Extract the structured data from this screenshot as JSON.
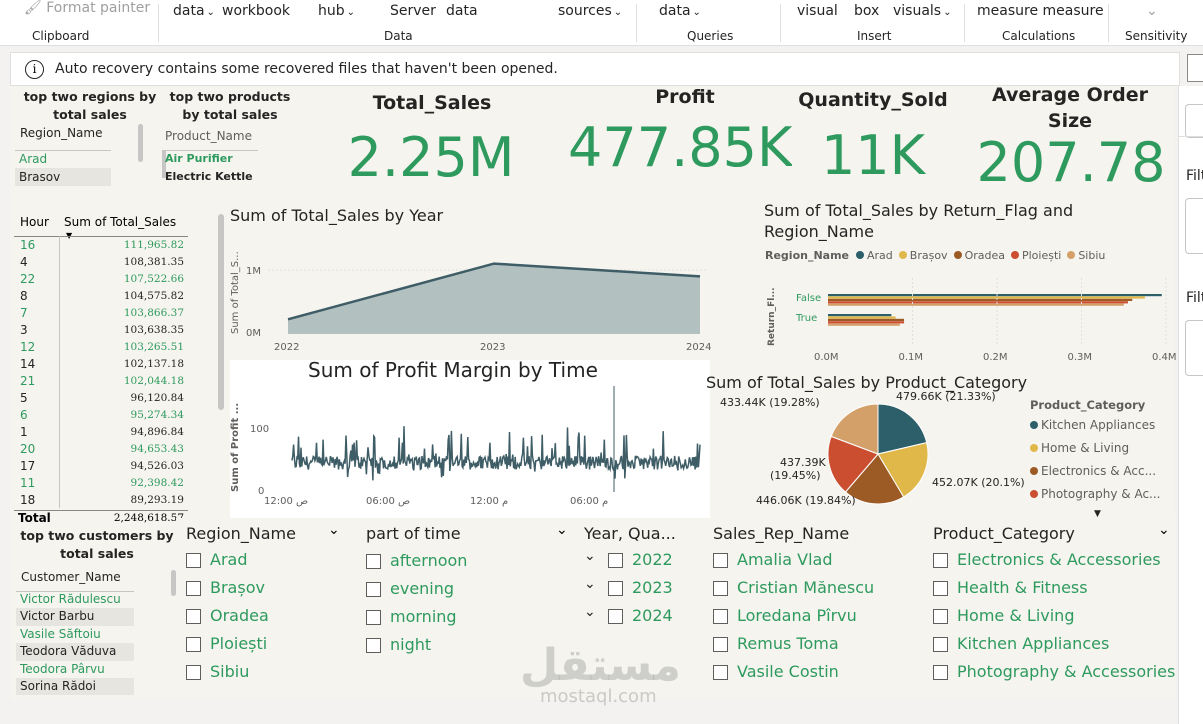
{
  "ribbon": {
    "format_painter": "Format painter",
    "items": [
      {
        "label": "data",
        "caret": true
      },
      {
        "label": "workbook",
        "caret": false
      },
      {
        "label": "hub",
        "caret": true
      },
      {
        "label": "Server",
        "caret": false
      },
      {
        "label": "data",
        "caret": false
      },
      {
        "label": "sources",
        "caret": true
      },
      {
        "label": "data",
        "caret": true
      },
      {
        "label": "visual",
        "caret": false
      },
      {
        "label": "box",
        "caret": false
      },
      {
        "label": "visuals",
        "caret": true
      },
      {
        "label": "measure measure",
        "caret": false
      }
    ],
    "groups": [
      "Clipboard",
      "Data",
      "Queries",
      "Insert",
      "Calculations",
      "Sensitivity"
    ],
    "caret_glyph": "⌄"
  },
  "infobar": {
    "text": "Auto recovery contains some recovered files that haven't been opened.",
    "icon": "info-icon"
  },
  "regions_slicer": {
    "title": "top two regions by total sales",
    "header": "Region_Name",
    "items": [
      "Arad",
      "Brasov"
    ]
  },
  "products_slicer": {
    "title": "top two products by total sales",
    "header": "Product_Name",
    "items": [
      "Air Purifier",
      "Electric Kettle"
    ]
  },
  "kpis": [
    {
      "title": "Total_Sales",
      "value": "2.25M"
    },
    {
      "title": "Profit",
      "value": "477.85K"
    },
    {
      "title": "Quantity_Sold",
      "value": "11K"
    },
    {
      "title": "Average Order Size",
      "value": "207.78"
    }
  ],
  "hour_table": {
    "col1": "Hour",
    "col2": "Sum of Total_Sales",
    "rows": [
      {
        "h": "16",
        "v": "111,965.82"
      },
      {
        "h": "4",
        "v": "108,381.35"
      },
      {
        "h": "22",
        "v": "107,522.66"
      },
      {
        "h": "8",
        "v": "104,575.82"
      },
      {
        "h": "7",
        "v": "103,866.37"
      },
      {
        "h": "3",
        "v": "103,638.35"
      },
      {
        "h": "12",
        "v": "103,265.51"
      },
      {
        "h": "14",
        "v": "102,137.18"
      },
      {
        "h": "21",
        "v": "102,044.18"
      },
      {
        "h": "5",
        "v": "96,120.84"
      },
      {
        "h": "6",
        "v": "95,274.34"
      },
      {
        "h": "1",
        "v": "94,896.84"
      },
      {
        "h": "20",
        "v": "94,653.43"
      },
      {
        "h": "17",
        "v": "94,526.03"
      },
      {
        "h": "11",
        "v": "92,398.42"
      },
      {
        "h": "18",
        "v": "89,293.19"
      }
    ],
    "total_label": "Total",
    "total_value": "2,248,618.57"
  },
  "customers_slicer": {
    "title": "top two customers by total sales",
    "header": "Customer_Name",
    "items": [
      "Victor Rădulescu",
      "Victor Barbu",
      "Vasile Săftoiu",
      "Teodora Văduva",
      "Teodora Pârvu",
      "Sorina Rădoi"
    ]
  },
  "charts": {
    "year": {
      "title": "Sum of Total_Sales by Year",
      "ylabel": "Sum of Total_S...",
      "yticks": [
        "0M",
        "1M"
      ]
    },
    "profit_time": {
      "title": "Sum of Profit Margin by Time",
      "ylabel": "Sum of Profit ...",
      "yticks": [
        "0",
        "100"
      ],
      "xticks": [
        "12:00 ص",
        "06:00 ص",
        "12:00 م",
        "06:00 م"
      ]
    },
    "return_flag": {
      "title": "Sum of Total_Sales by Return_Flag and Region_Name",
      "legend_title": "Region_Name",
      "ylabel": "Return_Fl..."
    },
    "category": {
      "title": "Sum of Total_Sales by Product_Category",
      "legend_title": "Product_Category"
    }
  },
  "chart_data": [
    {
      "type": "area",
      "x": [
        "2022",
        "2023",
        "2024"
      ],
      "values": [
        0.23,
        1.1,
        0.9
      ],
      "ylim": [
        0,
        1.3
      ]
    },
    {
      "type": "line",
      "note_series": "profit margin",
      "ylim": [
        0,
        200
      ]
    },
    {
      "type": "bar",
      "categories": [
        "False",
        "True"
      ],
      "series": [
        {
          "name": "Arad",
          "values": [
            0.395,
            0.075
          ],
          "color": "#2d5f6b"
        },
        {
          "name": "Brașov",
          "values": [
            0.375,
            0.08
          ],
          "color": "#e0b84a"
        },
        {
          "name": "Oradea",
          "values": [
            0.36,
            0.09
          ],
          "color": "#9c5a24"
        },
        {
          "name": "Ploiești",
          "values": [
            0.355,
            0.09
          ],
          "color": "#cc4e31"
        },
        {
          "name": "Sibiu",
          "values": [
            0.35,
            0.085
          ],
          "color": "#d4a06a"
        }
      ],
      "xticks": [
        "0.0M",
        "0.1M",
        "0.2M",
        "0.3M",
        "0.4M"
      ],
      "xlim": [
        0,
        0.4
      ]
    },
    {
      "type": "pie",
      "slices": [
        {
          "name": "Kitchen Appliances",
          "value": 479.66,
          "label": "479.66K (21.33%)",
          "color": "#2d5f6b"
        },
        {
          "name": "Home & Living",
          "value": 452.07,
          "label": "452.07K (20.1%)",
          "color": "#e0b84a"
        },
        {
          "name": "Electronics & Acc...",
          "value": 446.06,
          "label": "446.06K (19.84%)",
          "color": "#9c5a24"
        },
        {
          "name": "Photography & Ac...",
          "value": 437.39,
          "label": "437.39K (19.45%)",
          "color": "#cc4e31"
        },
        {
          "name": "",
          "value": 433.44,
          "label": "433.44K (19.28%)",
          "color": "#d4a06a"
        }
      ]
    }
  ],
  "slicers": {
    "region": {
      "head": "Region_Name",
      "items": [
        "Arad",
        "Brașov",
        "Oradea",
        "Ploiești",
        "Sibiu"
      ]
    },
    "part_of_time": {
      "head": "part of time",
      "items": [
        "afternoon",
        "evening",
        "morning",
        "night"
      ]
    },
    "year_quarter": {
      "head": "Year, Qua...",
      "items": [
        "2022",
        "2023",
        "2024"
      ]
    },
    "sales_rep": {
      "head": "Sales_Rep_Name",
      "items": [
        "Amalia Vlad",
        "Cristian Mănescu",
        "Loredana Pîrvu",
        "Remus Toma",
        "Vasile Costin"
      ]
    },
    "product_category": {
      "head": "Product_Category",
      "items": [
        "Electronics & Accessories",
        "Health & Fitness",
        "Home & Living",
        "Kitchen Appliances",
        "Photography & Accessories"
      ]
    }
  },
  "right_panel": {
    "filter1": "Filt",
    "filter2": "Filt"
  },
  "watermark": {
    "arabic": "مستقل",
    "latin": "mostaql.com"
  }
}
